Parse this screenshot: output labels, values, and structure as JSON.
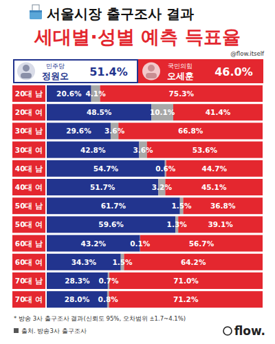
{
  "chart_data": {
    "type": "bar",
    "orientation": "horizontal",
    "stacked": true,
    "data_labels": true,
    "grid": false,
    "tick_labels": "y",
    "title": "서울시장 출구조사 결과",
    "subtitle": "세대별·성별 예측 득표율",
    "handle": "@flow.itself",
    "categories": [
      "20대 남",
      "20대 여",
      "30대 남",
      "30대 여",
      "40대 남",
      "40대 여",
      "50대 남",
      "50대 여",
      "60대 남",
      "60대 여",
      "70대 남",
      "70대 여"
    ],
    "xlim": [
      0,
      100
    ],
    "series": [
      {
        "name": "정원오",
        "party": "민주당",
        "share": "51.4%",
        "color": "#22348e",
        "values": [
          20.6,
          48.5,
          29.6,
          42.8,
          54.7,
          51.7,
          61.7,
          59.6,
          43.2,
          34.3,
          28.3,
          28.0
        ],
        "value_labels": [
          "20.6%",
          "48.5%",
          "29.6%",
          "42.8%",
          "54.7%",
          "51.7%",
          "61.7%",
          "59.6%",
          "43.2%",
          "34.3%",
          "28.3%",
          "28.0%"
        ]
      },
      {
        "color": "#a8a8a8",
        "values": [
          4.1,
          10.1,
          3.6,
          3.6,
          0.6,
          3.2,
          1.5,
          1.3,
          0.1,
          1.5,
          0.7,
          0.8
        ],
        "value_labels": [
          "4.1%",
          "10.1%",
          "3.6%",
          "3.6%",
          "0.6%",
          "3.2%",
          "1.5%",
          "1.3%",
          "0.1%",
          "1.5%",
          "0.7%",
          "0.8%"
        ]
      },
      {
        "name": "오세훈",
        "party": "국민의힘",
        "share": "46.0%",
        "color": "#e4272f",
        "values": [
          75.3,
          41.4,
          66.8,
          53.6,
          44.7,
          45.1,
          36.8,
          39.1,
          56.7,
          64.2,
          71.0,
          71.2
        ],
        "value_labels": [
          "75.3%",
          "41.4%",
          "66.8%",
          "53.6%",
          "44.7%",
          "45.1%",
          "36.8%",
          "39.1%",
          "56.7%",
          "64.2%",
          "71.0%",
          "71.2%"
        ]
      }
    ],
    "notes": [
      "* 방송 3사 출구조사 결과(신뢰도 95%, 오차범위 ±1.7~4.1%)",
      "출처. 방송3사 출구조사"
    ],
    "brand": "flow."
  }
}
